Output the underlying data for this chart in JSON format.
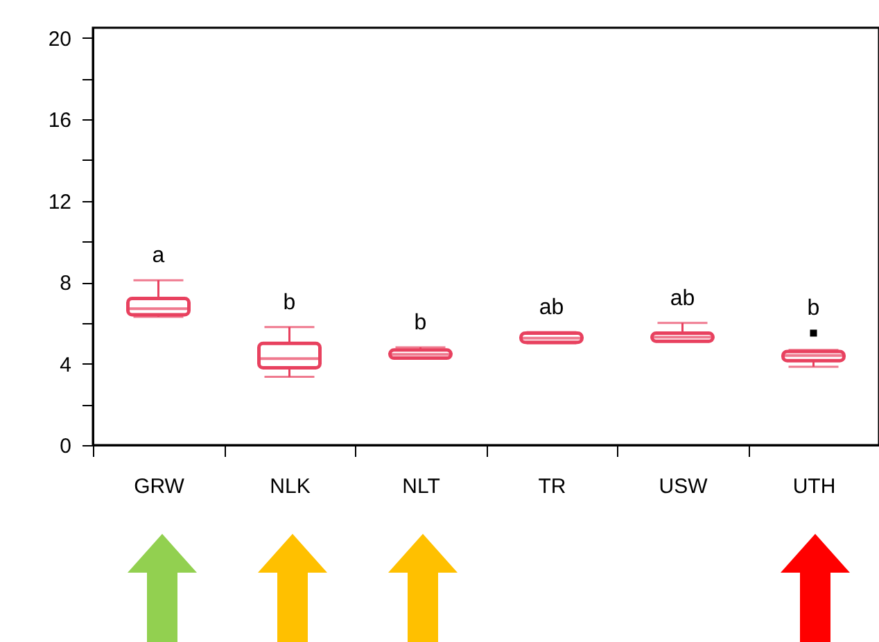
{
  "chart_data": {
    "type": "box",
    "categories": [
      "GRW",
      "NLK",
      "NLT",
      "TR",
      "USW",
      "UTH"
    ],
    "series": [
      {
        "color": "#e8415f",
        "boxes": [
          {
            "low": 6.3,
            "q1": 6.4,
            "median": 6.7,
            "q3": 7.2,
            "high": 8.1
          },
          {
            "low": 3.35,
            "q1": 3.8,
            "median": 4.25,
            "q3": 5.0,
            "high": 5.8
          },
          {
            "low": 4.25,
            "q1": 4.27,
            "median": 4.45,
            "q3": 4.67,
            "high": 4.8
          },
          {
            "low": 5.0,
            "q1": 5.05,
            "median": 5.25,
            "q3": 5.5,
            "high": 5.55
          },
          {
            "low": 5.1,
            "q1": 5.1,
            "median": 5.3,
            "q3": 5.5,
            "high": 6.0
          },
          {
            "low": 3.85,
            "q1": 4.15,
            "median": 4.4,
            "q3": 4.6,
            "high": 4.67,
            "outliers": [
              5.5
            ]
          }
        ]
      }
    ],
    "ylim": [
      0,
      20.5
    ],
    "yticks": [
      0,
      {
        "value": 2,
        "label": null
      },
      4,
      {
        "value": 6,
        "label": null
      },
      8,
      {
        "value": 10,
        "label": null
      },
      12,
      {
        "value": 14,
        "label": null
      },
      16,
      {
        "value": 18,
        "label": null
      },
      20
    ],
    "annotations": [
      "a",
      "b",
      "b",
      "ab",
      "ab",
      "b"
    ],
    "grid": false
  }
}
